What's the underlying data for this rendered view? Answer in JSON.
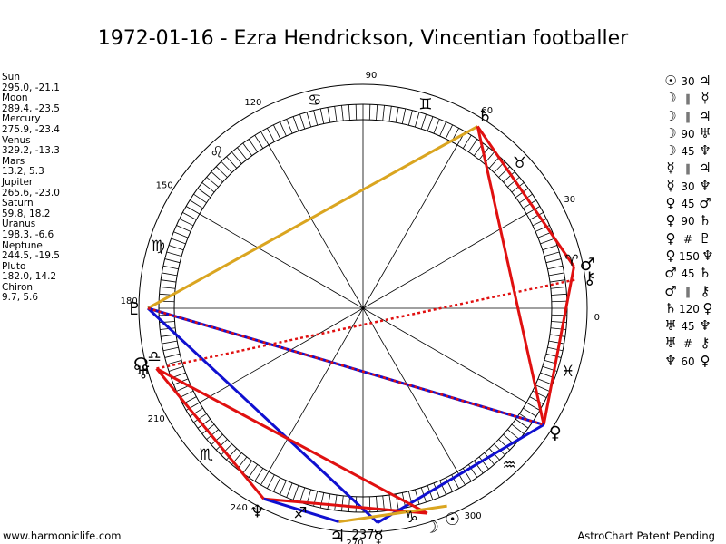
{
  "title": "1972-01-16 - Ezra Hendrickson, Vincentian footballer",
  "planets": [
    {
      "name": "Sun",
      "coords": "295.0, -21.1"
    },
    {
      "name": "Moon",
      "coords": "289.4, -23.5"
    },
    {
      "name": "Mercury",
      "coords": "275.9, -23.4"
    },
    {
      "name": "Venus",
      "coords": "329.2, -13.3"
    },
    {
      "name": "Mars",
      "coords": "13.2, 5.3"
    },
    {
      "name": "Jupiter",
      "coords": "265.6, -23.0"
    },
    {
      "name": "Saturn",
      "coords": "59.8, 18.2"
    },
    {
      "name": "Uranus",
      "coords": "198.3, -6.6"
    },
    {
      "name": "Neptune",
      "coords": "244.5, -19.5"
    },
    {
      "name": "Pluto",
      "coords": "182.0, 14.2"
    },
    {
      "name": "Chiron",
      "coords": "9.7, 5.6"
    }
  ],
  "aspects": [
    {
      "p1": "☉",
      "aspect": "30",
      "p2": "♃"
    },
    {
      "p1": "☽",
      "aspect": "∥",
      "p2": "☿"
    },
    {
      "p1": "☽",
      "aspect": "∥",
      "p2": "♃"
    },
    {
      "p1": "☽",
      "aspect": "90",
      "p2": "♅"
    },
    {
      "p1": "☽",
      "aspect": "45",
      "p2": "♆"
    },
    {
      "p1": "☿",
      "aspect": "∥",
      "p2": "♃"
    },
    {
      "p1": "☿",
      "aspect": "30",
      "p2": "♆"
    },
    {
      "p1": "♀",
      "aspect": "45",
      "p2": "♂"
    },
    {
      "p1": "♀",
      "aspect": "90",
      "p2": "♄"
    },
    {
      "p1": "♀",
      "aspect": "#",
      "p2": "♇"
    },
    {
      "p1": "♀",
      "aspect": "150",
      "p2": "♆"
    },
    {
      "p1": "♂",
      "aspect": "45",
      "p2": "♄"
    },
    {
      "p1": "♂",
      "aspect": "∥",
      "p2": "⚷"
    },
    {
      "p1": "♄",
      "aspect": "120",
      "p2": "♀"
    },
    {
      "p1": "♅",
      "aspect": "45",
      "p2": "♆"
    },
    {
      "p1": "♅",
      "aspect": "#",
      "p2": "⚷"
    },
    {
      "p1": "♆",
      "aspect": "60",
      "p2": "♀"
    }
  ],
  "wheel": {
    "degree_labels": [
      "0",
      "30",
      "60",
      "90",
      "120",
      "150",
      "180",
      "210",
      "240",
      "270",
      "300"
    ],
    "degree_values": [
      0,
      30,
      60,
      90,
      120,
      150,
      180,
      210,
      240,
      270,
      300
    ],
    "bottom_label": "237",
    "signs": [
      {
        "glyph": "♈",
        "lon": 15
      },
      {
        "glyph": "♉",
        "lon": 45
      },
      {
        "glyph": "♊",
        "lon": 75
      },
      {
        "glyph": "♋",
        "lon": 105
      },
      {
        "glyph": "♌",
        "lon": 135
      },
      {
        "glyph": "♍",
        "lon": 165
      },
      {
        "glyph": "♎",
        "lon": 195
      },
      {
        "glyph": "♏",
        "lon": 225
      },
      {
        "glyph": "♐",
        "lon": 255
      },
      {
        "glyph": "♑",
        "lon": 285
      },
      {
        "glyph": "♒",
        "lon": 315
      },
      {
        "glyph": "♓",
        "lon": 345
      }
    ],
    "bodies": [
      {
        "glyph": "☉",
        "lon": 295.0
      },
      {
        "glyph": "☽",
        "lon": 289.4
      },
      {
        "glyph": "☿",
        "lon": 275.9
      },
      {
        "glyph": "♀",
        "lon": 329.2
      },
      {
        "glyph": "♂",
        "lon": 13.2
      },
      {
        "glyph": "♃",
        "lon": 265.6
      },
      {
        "glyph": "♄",
        "lon": 59.8
      },
      {
        "glyph": "♅",
        "lon": 198.3
      },
      {
        "glyph": "♆",
        "lon": 244.5
      },
      {
        "glyph": "♇",
        "lon": 182.0
      },
      {
        "glyph": "⚷",
        "lon": 9.7
      },
      {
        "glyph": "☊",
        "lon": 196.0
      }
    ],
    "aspect_lines": [
      {
        "from": 59.8,
        "to": 182.0,
        "color": "#daa520",
        "style": "solid"
      },
      {
        "from": 59.8,
        "to": 329.2,
        "color": "#e01010",
        "style": "solid"
      },
      {
        "from": 59.8,
        "to": 13.2,
        "color": "#e01010",
        "style": "solid"
      },
      {
        "from": 13.2,
        "to": 329.2,
        "color": "#e01010",
        "style": "solid"
      },
      {
        "from": 182.0,
        "to": 329.2,
        "color": "#1010d0",
        "style": "solid"
      },
      {
        "from": 182.0,
        "to": 275.9,
        "color": "#1010d0",
        "style": "solid"
      },
      {
        "from": 275.9,
        "to": 329.2,
        "color": "#1010d0",
        "style": "solid"
      },
      {
        "from": 244.5,
        "to": 198.3,
        "color": "#e01010",
        "style": "solid"
      },
      {
        "from": 198.3,
        "to": 289.4,
        "color": "#e01010",
        "style": "solid"
      },
      {
        "from": 244.5,
        "to": 289.4,
        "color": "#e01010",
        "style": "solid"
      },
      {
        "from": 244.5,
        "to": 265.6,
        "color": "#1010d0",
        "style": "solid"
      },
      {
        "from": 265.6,
        "to": 295.0,
        "color": "#daa520",
        "style": "solid"
      },
      {
        "from": 198.3,
        "to": 9.7,
        "color": "#e01010",
        "style": "dotted"
      },
      {
        "from": 182.0,
        "to": 329.2,
        "color": "#e01010",
        "style": "dotted"
      }
    ]
  },
  "footer": {
    "left": "www.harmoniclife.com",
    "right": "AstroChart Patent Pending"
  }
}
